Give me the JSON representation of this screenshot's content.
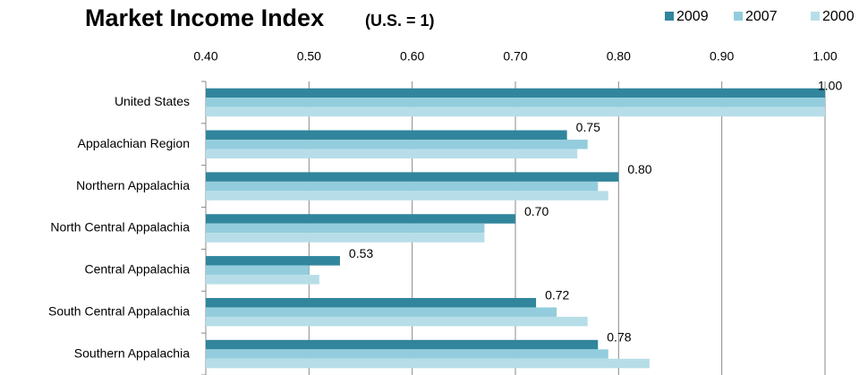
{
  "chart_data": {
    "type": "hbar",
    "title": "Market Income Index",
    "subtitle": "(U.S. = 1)",
    "categories": [
      "United States",
      "Appalachian Region",
      "Northern Appalachia",
      "North Central Appalachia",
      "Central Appalachia",
      "South Central Appalachia",
      "Southern Appalachia"
    ],
    "series": [
      {
        "name": "2009",
        "color": "#31859c",
        "values": [
          1.0,
          0.75,
          0.8,
          0.7,
          0.53,
          0.72,
          0.78
        ],
        "value_labels": [
          "1.00",
          "0.75",
          "0.80",
          "0.70",
          "0.53",
          "0.72",
          "0.78"
        ]
      },
      {
        "name": "2007",
        "color": "#93cddd",
        "values": [
          1.0,
          0.77,
          0.78,
          0.67,
          0.5,
          0.74,
          0.79
        ]
      },
      {
        "name": "2000",
        "color": "#b7dee8",
        "values": [
          1.0,
          0.76,
          0.79,
          0.67,
          0.51,
          0.77,
          0.83
        ]
      }
    ],
    "xlim": [
      0.4,
      1.0
    ],
    "xticks": [
      {
        "value": 0.4,
        "label": "0.40"
      },
      {
        "value": 0.5,
        "label": "0.50"
      },
      {
        "value": 0.6,
        "label": "0.60"
      },
      {
        "value": 0.7,
        "label": "0.70"
      },
      {
        "value": 0.8,
        "label": "0.80"
      },
      {
        "value": 0.9,
        "label": "0.90"
      },
      {
        "value": 1.0,
        "label": "1.00"
      }
    ],
    "grid": true,
    "legend": "top-right"
  }
}
